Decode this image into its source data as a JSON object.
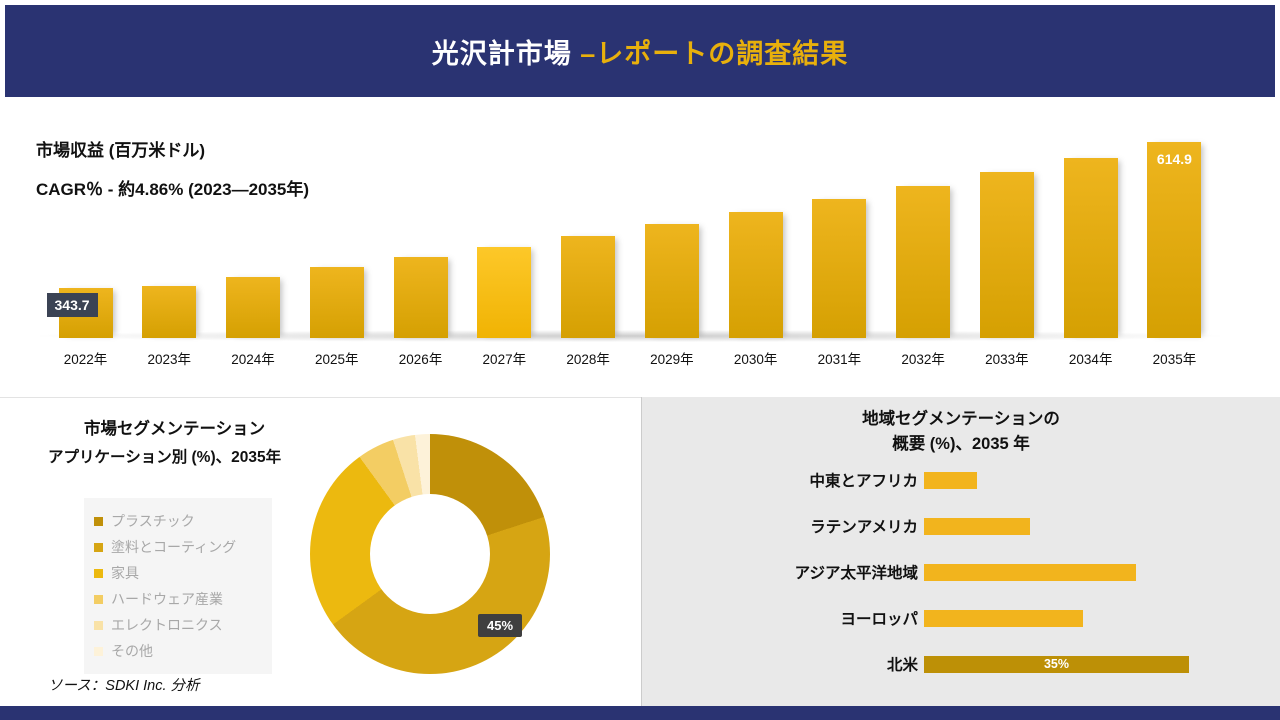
{
  "header": {
    "title_white": "光沢計市場 ",
    "title_gold": "–レポートの調査結果"
  },
  "source_note": "ソース：SDKI Inc. 分析",
  "colors": {
    "navy": "#2a3372",
    "gold_text": "#e8b00c",
    "bar_top": "#eeb51e",
    "bar_bottom": "#d5a002",
    "chip_bg": "#3b4354",
    "badge_bg": "#3f3f3f",
    "region_bar": "#f2b41d",
    "region_bar_dark": "#bd9006",
    "panel_gray": "#e9e9e9"
  },
  "chart_data": [
    {
      "type": "bar",
      "title": "市場収益 (百万米ドル)",
      "subtitle": "CAGR％ - 約4.86% (2023―2035年)",
      "categories": [
        "2022年",
        "2023年",
        "2024年",
        "2025年",
        "2026年",
        "2027年",
        "2028年",
        "2029年",
        "2030年",
        "2031年",
        "2032年",
        "2033年",
        "2034年",
        "2035年"
      ],
      "values": [
        343.7,
        347.7,
        364.6,
        382.3,
        400.9,
        420.4,
        440.8,
        462.2,
        484.7,
        508.3,
        533.0,
        558.9,
        586.0,
        614.9
      ],
      "data_labels": {
        "first": "343.7",
        "last": "614.9"
      },
      "highlight_index": 5,
      "xlabel": "",
      "ylabel": "百万米ドル",
      "ylim": [
        300,
        650
      ],
      "grid": false,
      "legend_position": "none"
    },
    {
      "type": "pie",
      "title": "市場セグメンテーション",
      "subtitle": "アプリケーション別 (%)、2035年",
      "labels": [
        "プラスチック",
        "塗料とコーティング",
        "家具",
        "ハードウェア産業",
        "エレクトロニクス",
        "その他"
      ],
      "values": [
        20,
        45,
        25,
        5,
        3,
        2
      ],
      "colors": [
        "#c09009",
        "#d6a513",
        "#ecb90f",
        "#f3cd63",
        "#f9e2a7",
        "#fdf2d9"
      ],
      "annotation": "45%",
      "legend_position": "left"
    },
    {
      "type": "bar",
      "orientation": "horizontal",
      "title_lines": [
        "地域セグメンテーションの",
        "概要 (%)、2035 年"
      ],
      "categories": [
        "中東とアフリカ",
        "ラテンアメリカ",
        "アジア太平洋地域",
        "ヨーロッパ",
        "北米"
      ],
      "values": [
        7,
        14,
        28,
        21,
        35
      ],
      "data_label": "35%",
      "grid": false,
      "legend_position": "none"
    }
  ]
}
